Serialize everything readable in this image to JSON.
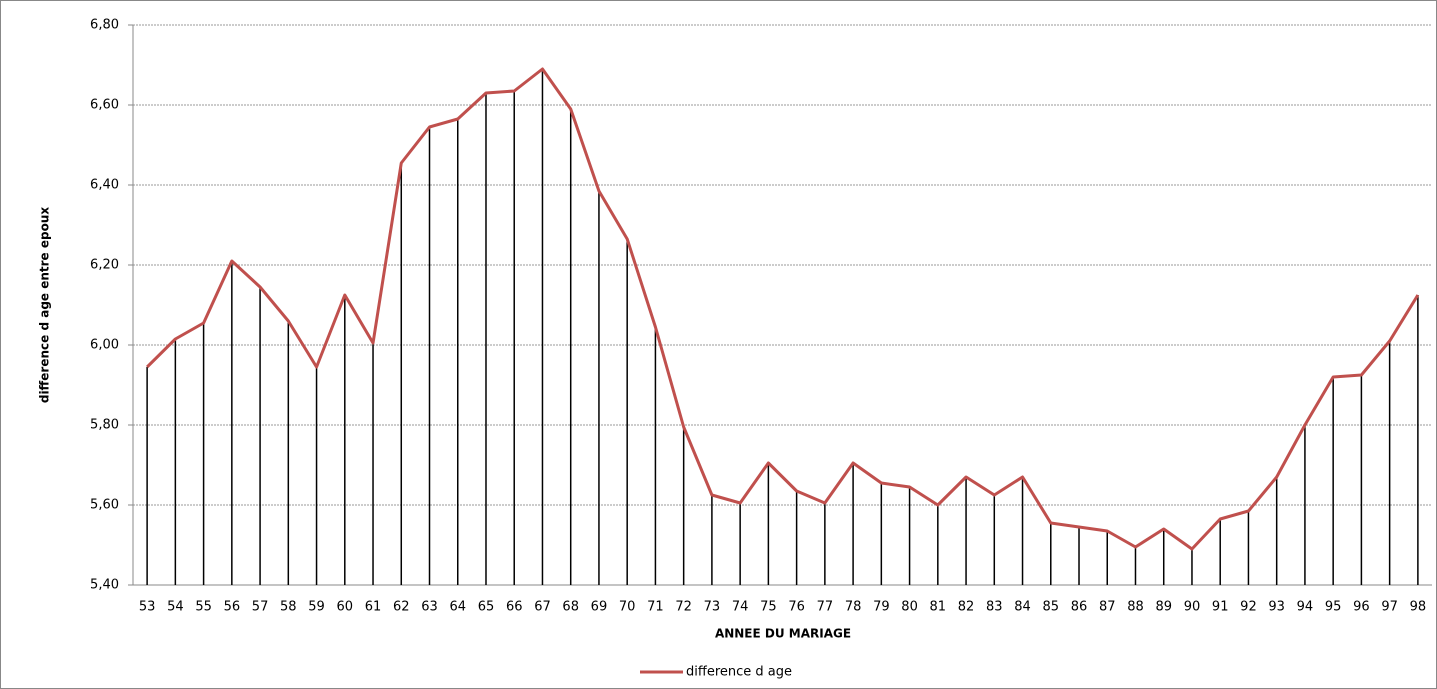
{
  "chart_data": {
    "type": "line",
    "drop_lines": true,
    "drop_line_color": "#000000",
    "x_label": "ANNEE DU MARIAGE",
    "y_label": "difference d age entre epoux",
    "categories": [
      "53",
      "54",
      "55",
      "56",
      "57",
      "58",
      "59",
      "60",
      "61",
      "62",
      "63",
      "64",
      "65",
      "66",
      "67",
      "68",
      "69",
      "70",
      "71",
      "72",
      "73",
      "74",
      "75",
      "76",
      "77",
      "78",
      "79",
      "80",
      "81",
      "82",
      "83",
      "84",
      "85",
      "86",
      "87",
      "88",
      "89",
      "90",
      "91",
      "92",
      "93",
      "94",
      "95",
      "96",
      "97",
      "98"
    ],
    "series": [
      {
        "name": "difference d age",
        "color": "#c0504d",
        "values": [
          5.945,
          6.015,
          6.055,
          6.21,
          6.145,
          6.06,
          5.945,
          6.125,
          6.005,
          6.455,
          6.545,
          6.565,
          6.63,
          6.635,
          6.69,
          6.59,
          6.385,
          6.265,
          6.045,
          5.795,
          5.625,
          5.605,
          5.705,
          5.635,
          5.605,
          5.705,
          5.655,
          5.645,
          5.6,
          5.67,
          5.625,
          5.67,
          5.555,
          5.545,
          5.535,
          5.495,
          5.54,
          5.49,
          5.565,
          5.585,
          5.67,
          5.8,
          5.92,
          5.925,
          6.01,
          6.125
        ]
      }
    ],
    "ylim": [
      5.4,
      6.8
    ],
    "yticks": [
      {
        "value": 5.4,
        "label": "5,40"
      },
      {
        "value": 5.6,
        "label": "5,60"
      },
      {
        "value": 5.8,
        "label": "5,80"
      },
      {
        "value": 6.0,
        "label": "6,00"
      },
      {
        "value": 6.2,
        "label": "6,20"
      },
      {
        "value": 6.4,
        "label": "6,40"
      },
      {
        "value": 6.6,
        "label": "6,60"
      },
      {
        "value": 6.8,
        "label": "6,80"
      }
    ],
    "grid": true,
    "legend": "bottom"
  }
}
